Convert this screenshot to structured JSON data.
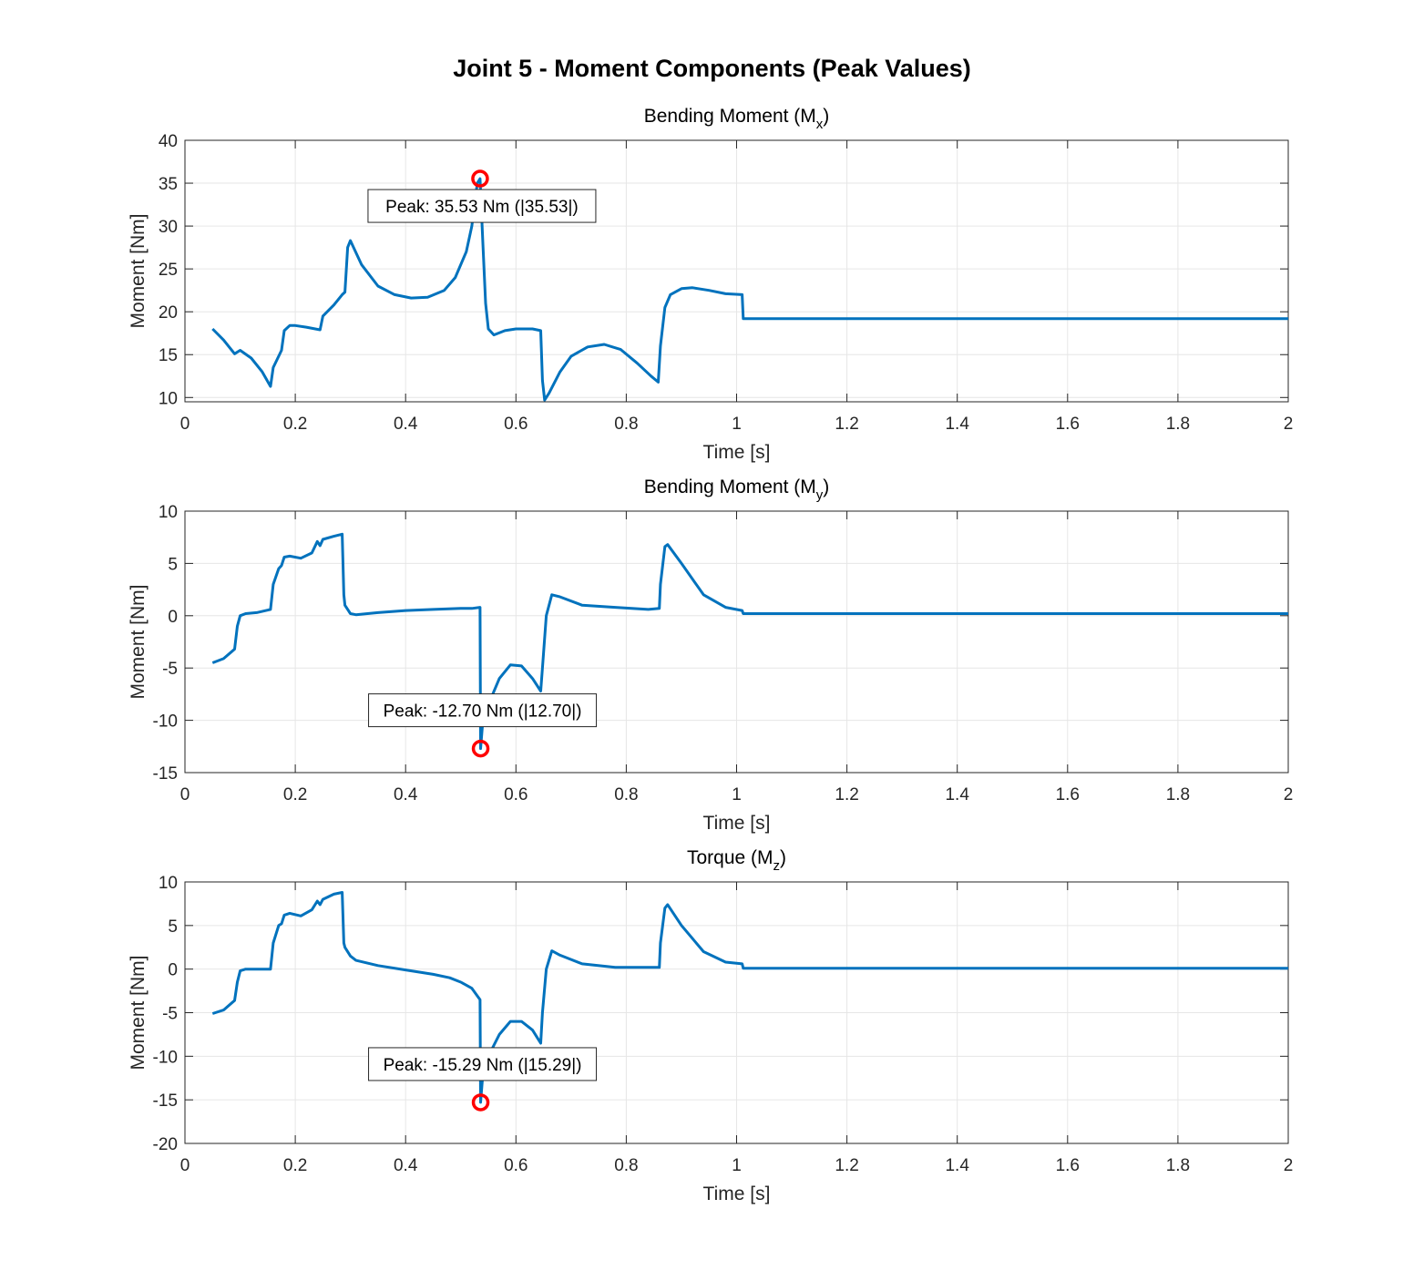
{
  "figure": {
    "title": "Joint 5 - Moment Components (Peak Values)",
    "line_color": "#0072BD",
    "marker_color": "#FF0000",
    "grid_color": "#E6E6E6"
  },
  "chart_data": [
    {
      "type": "line",
      "title": "Bending Moment (M",
      "title_sub": "x",
      "title_end": ")",
      "xlabel": "Time [s]",
      "ylabel": "Moment [Nm]",
      "xlim": [
        0,
        2
      ],
      "ylim": [
        9.5,
        40
      ],
      "xticks": [
        0,
        0.2,
        0.4,
        0.6,
        0.8,
        1,
        1.2,
        1.4,
        1.6,
        1.8,
        2
      ],
      "yticks": [
        10,
        15,
        20,
        25,
        30,
        35,
        40
      ],
      "xtick_labels": [
        "0",
        "0.2",
        "0.4",
        "0.6",
        "0.8",
        "1",
        "1.2",
        "1.4",
        "1.6",
        "1.8",
        "2"
      ],
      "ytick_labels": [
        "10",
        "15",
        "20",
        "25",
        "30",
        "35",
        "40"
      ],
      "series": [
        {
          "name": "Mx",
          "x": [
            0.05,
            0.07,
            0.09,
            0.1,
            0.12,
            0.14,
            0.155,
            0.16,
            0.175,
            0.18,
            0.19,
            0.2,
            0.22,
            0.245,
            0.25,
            0.27,
            0.285,
            0.29,
            0.295,
            0.3,
            0.32,
            0.35,
            0.38,
            0.41,
            0.44,
            0.47,
            0.49,
            0.51,
            0.52,
            0.53,
            0.535,
            0.54,
            0.545,
            0.55,
            0.56,
            0.58,
            0.6,
            0.63,
            0.645,
            0.648,
            0.652,
            0.66,
            0.68,
            0.7,
            0.73,
            0.76,
            0.79,
            0.82,
            0.845,
            0.858,
            0.862,
            0.87,
            0.88,
            0.9,
            0.92,
            0.95,
            0.98,
            1.01,
            1.012,
            1.05,
            1.2,
            1.4,
            1.6,
            1.8,
            2.0
          ],
          "y": [
            18,
            16.7,
            15.1,
            15.5,
            14.6,
            13.0,
            11.3,
            13.5,
            15.5,
            17.8,
            18.4,
            18.4,
            18.2,
            17.9,
            19.5,
            20.8,
            22.0,
            22.3,
            27.5,
            28.3,
            25.5,
            23.0,
            22.0,
            21.6,
            21.7,
            22.5,
            24.0,
            27.0,
            30.0,
            35.0,
            35.53,
            28.0,
            21.0,
            18.0,
            17.3,
            17.8,
            18.0,
            18.0,
            17.8,
            12.0,
            9.7,
            10.5,
            13.0,
            14.8,
            15.9,
            16.2,
            15.6,
            14.0,
            12.5,
            11.8,
            16.0,
            20.5,
            22.0,
            22.7,
            22.8,
            22.5,
            22.1,
            22.0,
            19.2,
            19.2,
            19.2,
            19.2,
            19.2,
            19.2,
            19.2
          ]
        }
      ],
      "peak": {
        "x": 0.535,
        "y": 35.53,
        "label": "Peak: 35.53 Nm (|35.53|)",
        "label_position": "below"
      }
    },
    {
      "type": "line",
      "title": "Bending Moment (M",
      "title_sub": "y",
      "title_end": ")",
      "xlabel": "Time [s]",
      "ylabel": "Moment [Nm]",
      "xlim": [
        0,
        2
      ],
      "ylim": [
        -15,
        10
      ],
      "xticks": [
        0,
        0.2,
        0.4,
        0.6,
        0.8,
        1,
        1.2,
        1.4,
        1.6,
        1.8,
        2
      ],
      "yticks": [
        -15,
        -10,
        -5,
        0,
        5,
        10
      ],
      "xtick_labels": [
        "0",
        "0.2",
        "0.4",
        "0.6",
        "0.8",
        "1",
        "1.2",
        "1.4",
        "1.6",
        "1.8",
        "2"
      ],
      "ytick_labels": [
        "-15",
        "-10",
        "-5",
        "0",
        "5",
        "10"
      ],
      "series": [
        {
          "name": "My",
          "x": [
            0.05,
            0.07,
            0.09,
            0.095,
            0.1,
            0.11,
            0.13,
            0.155,
            0.16,
            0.17,
            0.175,
            0.18,
            0.19,
            0.21,
            0.23,
            0.24,
            0.245,
            0.25,
            0.27,
            0.285,
            0.288,
            0.29,
            0.3,
            0.31,
            0.35,
            0.4,
            0.45,
            0.5,
            0.52,
            0.535,
            0.536,
            0.54,
            0.55,
            0.57,
            0.59,
            0.61,
            0.63,
            0.645,
            0.648,
            0.655,
            0.665,
            0.68,
            0.72,
            0.78,
            0.84,
            0.86,
            0.862,
            0.87,
            0.875,
            0.9,
            0.94,
            0.98,
            1.01,
            1.012,
            1.1,
            1.3,
            1.5,
            1.7,
            2.0
          ],
          "y": [
            -4.5,
            -4.1,
            -3.2,
            -1.0,
            0.0,
            0.2,
            0.3,
            0.6,
            3.0,
            4.5,
            4.8,
            5.6,
            5.7,
            5.5,
            6.0,
            7.1,
            6.7,
            7.3,
            7.6,
            7.8,
            2.0,
            1.0,
            0.2,
            0.1,
            0.3,
            0.5,
            0.6,
            0.7,
            0.7,
            0.8,
            -12.7,
            -10.0,
            -8.5,
            -6.0,
            -4.7,
            -4.8,
            -6.0,
            -7.2,
            -5.0,
            0.0,
            2.0,
            1.8,
            1.0,
            0.8,
            0.6,
            0.7,
            3.0,
            6.6,
            6.8,
            5.0,
            2.0,
            0.8,
            0.5,
            0.2,
            0.2,
            0.2,
            0.2,
            0.2,
            0.2
          ]
        }
      ],
      "peak": {
        "x": 0.536,
        "y": -12.7,
        "label": "Peak: -12.70 Nm (|12.70|)",
        "label_position": "above"
      }
    },
    {
      "type": "line",
      "title": "Torque (M",
      "title_sub": "z",
      "title_end": ")",
      "xlabel": "Time [s]",
      "ylabel": "Moment [Nm]",
      "xlim": [
        0,
        2
      ],
      "ylim": [
        -20,
        10
      ],
      "xticks": [
        0,
        0.2,
        0.4,
        0.6,
        0.8,
        1,
        1.2,
        1.4,
        1.6,
        1.8,
        2
      ],
      "yticks": [
        -20,
        -15,
        -10,
        -5,
        0,
        5,
        10
      ],
      "xtick_labels": [
        "0",
        "0.2",
        "0.4",
        "0.6",
        "0.8",
        "1",
        "1.2",
        "1.4",
        "1.6",
        "1.8",
        "2"
      ],
      "ytick_labels": [
        "-20",
        "-15",
        "-10",
        "-5",
        "0",
        "5",
        "10"
      ],
      "series": [
        {
          "name": "Mz",
          "x": [
            0.05,
            0.07,
            0.09,
            0.095,
            0.1,
            0.11,
            0.13,
            0.155,
            0.16,
            0.17,
            0.175,
            0.18,
            0.19,
            0.21,
            0.23,
            0.24,
            0.245,
            0.25,
            0.27,
            0.285,
            0.288,
            0.29,
            0.3,
            0.31,
            0.35,
            0.4,
            0.45,
            0.48,
            0.5,
            0.52,
            0.535,
            0.536,
            0.54,
            0.55,
            0.57,
            0.59,
            0.61,
            0.63,
            0.645,
            0.648,
            0.655,
            0.665,
            0.68,
            0.72,
            0.78,
            0.84,
            0.86,
            0.862,
            0.87,
            0.875,
            0.9,
            0.94,
            0.98,
            1.01,
            1.012,
            1.1,
            1.3,
            1.5,
            1.7,
            2.0
          ],
          "y": [
            -5.1,
            -4.7,
            -3.6,
            -1.5,
            -0.2,
            0.0,
            0.0,
            0.0,
            3.0,
            5.0,
            5.2,
            6.2,
            6.4,
            6.1,
            6.8,
            7.8,
            7.4,
            8.0,
            8.6,
            8.8,
            3.0,
            2.5,
            1.5,
            1.0,
            0.4,
            -0.1,
            -0.6,
            -1.0,
            -1.5,
            -2.2,
            -3.5,
            -15.29,
            -12.0,
            -10.0,
            -7.5,
            -6.0,
            -6.0,
            -7.0,
            -8.5,
            -5.0,
            0.0,
            2.1,
            1.6,
            0.6,
            0.2,
            0.2,
            0.2,
            3.0,
            7.0,
            7.4,
            5.0,
            2.0,
            0.8,
            0.6,
            0.1,
            0.1,
            0.1,
            0.1,
            0.1,
            0.1
          ]
        }
      ],
      "peak": {
        "x": 0.536,
        "y": -15.29,
        "label": "Peak: -15.29 Nm (|15.29|)",
        "label_position": "above"
      }
    }
  ]
}
